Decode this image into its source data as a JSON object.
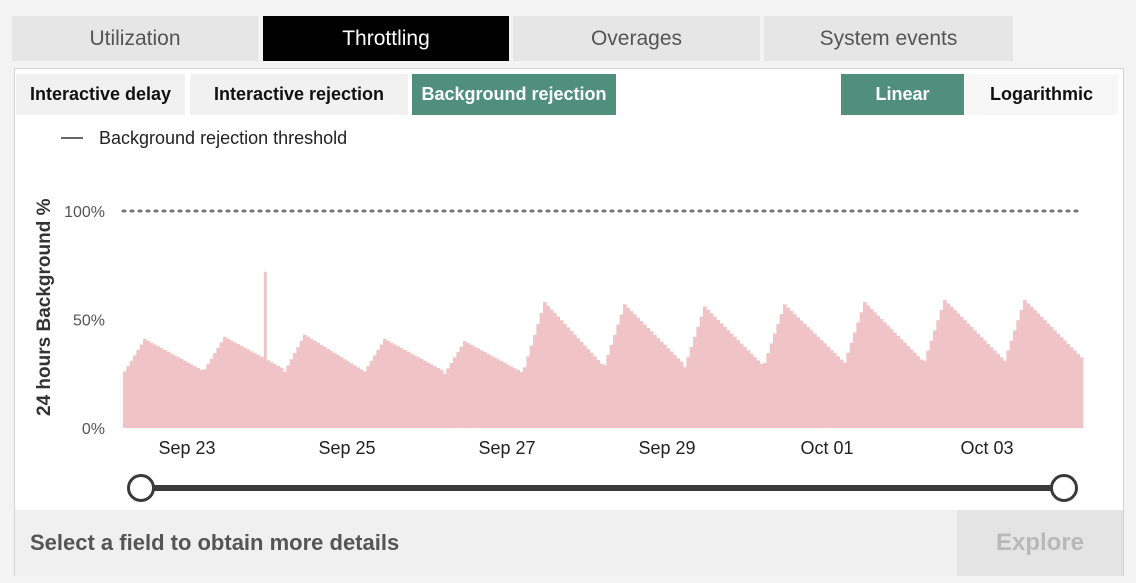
{
  "tabs": [
    {
      "label": "Utilization",
      "active": false
    },
    {
      "label": "Throttling",
      "active": true
    },
    {
      "label": "Overages",
      "active": false
    },
    {
      "label": "System events",
      "active": false
    }
  ],
  "subtabs": [
    {
      "label": "Interactive delay",
      "active": false
    },
    {
      "label": "Interactive rejection",
      "active": false
    },
    {
      "label": "Background rejection",
      "active": true
    }
  ],
  "scale_toggle": [
    {
      "label": "Linear",
      "active": true
    },
    {
      "label": "Logarithmic",
      "active": false
    }
  ],
  "legend": {
    "label": "Background rejection threshold"
  },
  "footer": {
    "details_text": "Select a field to obtain more details",
    "explore_label": "Explore"
  },
  "colors": {
    "active_tab_bg": "#000000",
    "accent": "#4f8f7c",
    "bar": "#f0c4c6",
    "threshold": "#777777"
  },
  "chart_data": {
    "type": "bar",
    "ylabel": "24 hours Background %",
    "y_ticks": [
      "0%",
      "50%",
      "100%"
    ],
    "ylim": [
      0,
      100
    ],
    "x_ticks": [
      "Sep 23",
      "Sep 25",
      "Sep 27",
      "Sep 29",
      "Oct 01",
      "Oct 03"
    ],
    "x_range": [
      "Sep 22",
      "Oct 04"
    ],
    "threshold": {
      "name": "Background rejection threshold",
      "value": 100,
      "style": "dotted"
    },
    "bar_interval_hours": 1,
    "daily_cycles": [
      {
        "start": "Sep 22",
        "min": 26,
        "max": 41
      },
      {
        "start": "Sep 23",
        "min": 27,
        "max": 42
      },
      {
        "start": "Sep 24",
        "min": 26,
        "max": 43
      },
      {
        "start": "Sep 25",
        "min": 26,
        "max": 41
      },
      {
        "start": "Sep 26",
        "min": 25,
        "max": 40
      },
      {
        "start": "Sep 27",
        "min": 28,
        "max": 58
      },
      {
        "start": "Sep 28",
        "min": 29,
        "max": 57
      },
      {
        "start": "Sep 29",
        "min": 28,
        "max": 56
      },
      {
        "start": "Sep 30",
        "min": 30,
        "max": 57
      },
      {
        "start": "Oct 01",
        "min": 30,
        "max": 58
      },
      {
        "start": "Oct 02",
        "min": 31,
        "max": 59
      },
      {
        "start": "Oct 03",
        "min": 31,
        "max": 59
      }
    ],
    "spike": {
      "date": "Sep 23",
      "value": 72
    },
    "grid": false,
    "legend_position": "top-left"
  }
}
